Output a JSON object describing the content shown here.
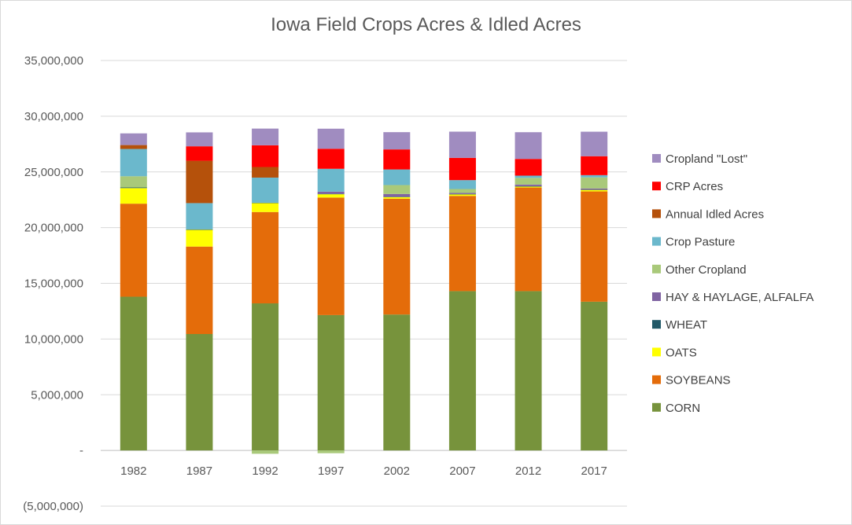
{
  "chart_data": {
    "type": "bar",
    "stacked": true,
    "title": "Iowa Field Crops Acres & Idled Acres",
    "xlabel": "",
    "ylabel": "",
    "ylim": [
      -5000000,
      35000000
    ],
    "yticks": [
      -5000000,
      0,
      5000000,
      10000000,
      15000000,
      20000000,
      25000000,
      30000000,
      35000000
    ],
    "ytick_labels": [
      "(5,000,000)",
      "-",
      "5,000,000",
      "10,000,000",
      "15,000,000",
      "20,000,000",
      "25,000,000",
      "30,000,000",
      "35,000,000"
    ],
    "grid": true,
    "legend_position": "right",
    "categories": [
      "1982",
      "1987",
      "1992",
      "1997",
      "2002",
      "2007",
      "2012",
      "2017"
    ],
    "series": [
      {
        "name": "CORN",
        "color": "#77933c",
        "values": [
          13800000,
          10450000,
          13200000,
          12150000,
          12200000,
          14300000,
          14300000,
          13350000
        ]
      },
      {
        "name": "SOYBEANS",
        "color": "#e46c0a",
        "values": [
          8350000,
          7850000,
          8200000,
          10550000,
          10400000,
          8550000,
          9300000,
          9900000
        ]
      },
      {
        "name": "OATS",
        "color": "#ffff00",
        "values": [
          1400000,
          1500000,
          800000,
          300000,
          150000,
          150000,
          100000,
          150000
        ]
      },
      {
        "name": "WHEAT",
        "color": "#215968",
        "values": [
          60000,
          50000,
          40000,
          30000,
          20000,
          15000,
          15000,
          10000
        ]
      },
      {
        "name": "HAY & HAYLAGE, ALFALFA",
        "color": "#8064a2",
        "values": [
          0,
          0,
          0,
          200000,
          250000,
          100000,
          150000,
          100000
        ]
      },
      {
        "name": "Other Cropland",
        "color": "#a9c97a",
        "values": [
          1000000,
          0,
          -300000,
          -250000,
          800000,
          350000,
          600000,
          1000000
        ]
      },
      {
        "name": "Crop Pasture",
        "color": "#6bb8cc",
        "values": [
          2450000,
          2350000,
          2250000,
          2050000,
          1400000,
          800000,
          200000,
          200000
        ]
      },
      {
        "name": "Annual Idled Acres",
        "color": "#b5510b",
        "values": [
          350000,
          3800000,
          950000,
          0,
          0,
          0,
          0,
          0
        ]
      },
      {
        "name": "CRP Acres",
        "color": "#ff0000",
        "values": [
          0,
          1300000,
          1950000,
          1800000,
          1800000,
          2000000,
          1500000,
          1700000
        ]
      },
      {
        "name": "Cropland \"Lost\"",
        "color": "#a08cc0",
        "values": [
          1050000,
          1250000,
          1500000,
          1800000,
          1550000,
          2350000,
          2400000,
          2200000
        ]
      }
    ]
  }
}
